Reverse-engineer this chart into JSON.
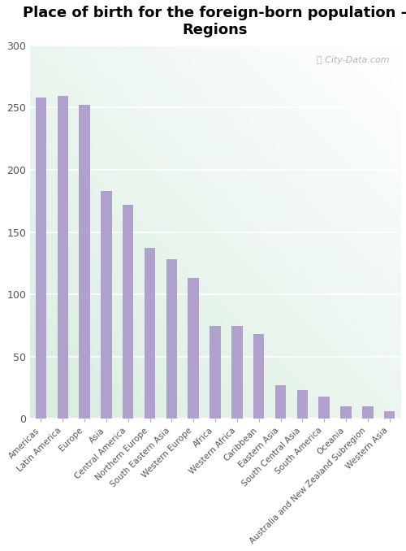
{
  "title": "Place of birth for the foreign-born population -\nRegions",
  "categories": [
    "Americas",
    "Latin America",
    "Europe",
    "Asia",
    "Central America",
    "Northern Europe",
    "South Eastern Asia",
    "Western Europe",
    "Africa",
    "Western Africa",
    "Caribbean",
    "Eastern Asia",
    "South Central Asia",
    "South America",
    "Oceania",
    "Australia and New Zealand Subregion",
    "Western Asia"
  ],
  "values": [
    258,
    259,
    252,
    183,
    172,
    137,
    128,
    113,
    75,
    75,
    68,
    27,
    23,
    18,
    10,
    10,
    6
  ],
  "bar_color": "#b0a0cc",
  "ylim": [
    0,
    300
  ],
  "yticks": [
    0,
    50,
    100,
    150,
    200,
    250,
    300
  ],
  "fig_bg_color": "#ffffff",
  "plot_bg_top": "#f5f8f0",
  "plot_bg_bottom": "#d8ede0",
  "watermark": "City-Data.com",
  "title_fontsize": 13,
  "grid_color": "#ffffff"
}
